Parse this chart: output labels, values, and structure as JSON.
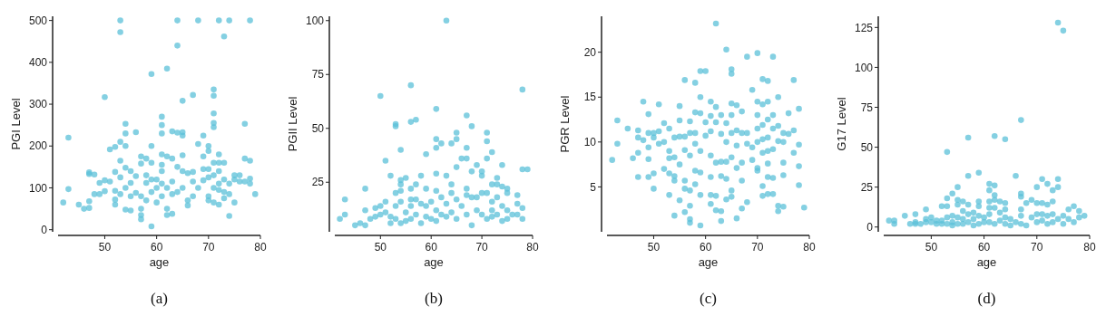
{
  "chart_data": [
    {
      "type": "scatter",
      "title": "(a)",
      "xlabel": "age",
      "ylabel": "PGI Level",
      "xlim": [
        41,
        80
      ],
      "xticks": [
        50,
        60,
        70,
        80
      ],
      "ylim": [
        -5,
        510
      ],
      "yticks": [
        0,
        100,
        200,
        300,
        400,
        500
      ],
      "marker": "circle",
      "series": [
        {
          "color": "#5bc0d8",
          "x": [
            42,
            43,
            43,
            45,
            46,
            47,
            47,
            47,
            47,
            48,
            48,
            49,
            49,
            50,
            50,
            50,
            51,
            51,
            52,
            52,
            52,
            52,
            52,
            53,
            53,
            53,
            53,
            53,
            53,
            54,
            54,
            54,
            54,
            54,
            54,
            55,
            55,
            55,
            55,
            56,
            56,
            56,
            57,
            57,
            57,
            57,
            57,
            57,
            58,
            58,
            58,
            58,
            59,
            59,
            59,
            59,
            59,
            59,
            60,
            60,
            60,
            61,
            61,
            61,
            61,
            61,
            61,
            61,
            61,
            62,
            62,
            62,
            62,
            62,
            63,
            63,
            63,
            63,
            63,
            64,
            64,
            64,
            64,
            64,
            65,
            65,
            65,
            65,
            65,
            65,
            66,
            66,
            66,
            67,
            67,
            67,
            67,
            68,
            68,
            68,
            69,
            69,
            69,
            69,
            70,
            70,
            70,
            70,
            70,
            70,
            71,
            71,
            71,
            71,
            71,
            71,
            71,
            71,
            71,
            72,
            72,
            72,
            72,
            72,
            72,
            72,
            73,
            73,
            73,
            73,
            73,
            74,
            74,
            74,
            74,
            75,
            75,
            75,
            76,
            76,
            77,
            77,
            77,
            78,
            78,
            78,
            78,
            79
          ],
          "values": [
            65,
            97,
            220,
            60,
            50,
            52,
            68,
            137,
            133,
            132,
            85,
            112,
            85,
            118,
            92,
            317,
            192,
            115,
            198,
            138,
            93,
            60,
            72,
            210,
            165,
            125,
            85,
            500,
            472,
            253,
            230,
            200,
            148,
            48,
            100,
            140,
            112,
            46,
            80,
            233,
            128,
            88,
            175,
            158,
            35,
            25,
            50,
            80,
            170,
            130,
            112,
            70,
            200,
            160,
            372,
            8,
            120,
            90,
            120,
            100,
            65,
            270,
            250,
            230,
            180,
            155,
            140,
            110,
            80,
            385,
            175,
            50,
            35,
            100,
            235,
            170,
            115,
            85,
            38,
            500,
            440,
            232,
            150,
            90,
            308,
            233,
            225,
            178,
            140,
            100,
            135,
            70,
            58,
            322,
            138,
            115,
            80,
            500,
            205,
            100,
            225,
            175,
            145,
            118,
            200,
            188,
            145,
            125,
            80,
            70,
            335,
            320,
            278,
            255,
            245,
            160,
            130,
            100,
            65,
            500,
            180,
            160,
            140,
            110,
            95,
            60,
            462,
            160,
            120,
            90,
            75,
            500,
            110,
            85,
            33,
            130,
            120,
            65,
            130,
            115,
            253,
            170,
            115,
            500,
            165,
            122,
            110,
            85
          ]
        }
      ]
    },
    {
      "type": "scatter",
      "title": "(b)",
      "xlabel": "age",
      "ylabel": "PGII Level",
      "xlim": [
        41,
        80
      ],
      "xticks": [
        50,
        60,
        70,
        80
      ],
      "ylim": [
        2,
        102
      ],
      "yticks": [
        25,
        50,
        75,
        100
      ],
      "marker": "circle",
      "series": [
        {
          "color": "#5bc0d8",
          "x": [
            42,
            43,
            43,
            45,
            46,
            47,
            47,
            47,
            48,
            49,
            49,
            50,
            50,
            50,
            51,
            51,
            51,
            52,
            52,
            52,
            53,
            53,
            53,
            53,
            53,
            54,
            54,
            54,
            54,
            54,
            54,
            55,
            55,
            55,
            56,
            56,
            56,
            56,
            56,
            56,
            57,
            57,
            57,
            57,
            58,
            58,
            58,
            59,
            59,
            59,
            59,
            60,
            60,
            61,
            61,
            61,
            61,
            61,
            61,
            61,
            62,
            62,
            62,
            63,
            63,
            63,
            63,
            64,
            64,
            64,
            64,
            65,
            65,
            65,
            65,
            65,
            66,
            66,
            67,
            67,
            67,
            67,
            67,
            67,
            68,
            68,
            68,
            68,
            69,
            69,
            69,
            70,
            70,
            70,
            70,
            71,
            71,
            71,
            71,
            71,
            72,
            72,
            72,
            72,
            72,
            73,
            73,
            73,
            73,
            74,
            74,
            74,
            74,
            75,
            75,
            75,
            75,
            76,
            77,
            77,
            77,
            78,
            78,
            78,
            78,
            79
          ],
          "values": [
            8,
            17,
            10,
            5,
            6,
            22,
            12,
            5,
            8,
            13,
            9,
            65,
            14,
            10,
            35,
            16,
            11,
            28,
            9,
            6,
            52,
            51,
            20,
            14,
            8,
            40,
            26,
            24,
            21,
            16,
            6,
            27,
            11,
            7,
            70,
            53,
            22,
            17,
            14,
            8,
            54,
            24,
            17,
            10,
            28,
            15,
            6,
            38,
            22,
            14,
            9,
            16,
            8,
            59,
            45,
            41,
            29,
            21,
            12,
            7,
            43,
            18,
            10,
            100,
            28,
            15,
            9,
            43,
            24,
            20,
            11,
            48,
            45,
            32,
            17,
            8,
            36,
            14,
            56,
            41,
            36,
            22,
            19,
            10,
            51,
            30,
            18,
            5,
            33,
            18,
            12,
            30,
            28,
            20,
            10,
            48,
            44,
            36,
            20,
            8,
            39,
            24,
            16,
            12,
            9,
            27,
            24,
            18,
            10,
            33,
            23,
            14,
            7,
            22,
            20,
            12,
            8,
            10,
            19,
            15,
            10,
            68,
            31,
            13,
            8,
            31
          ]
        }
      ]
    },
    {
      "type": "scatter",
      "title": "(c)",
      "xlabel": "age",
      "ylabel": "PGR Level",
      "xlim": [
        41,
        80
      ],
      "xticks": [
        50,
        60,
        70,
        80
      ],
      "ylim": [
        0,
        24
      ],
      "yticks": [
        5,
        10,
        15,
        20
      ],
      "marker": "circle",
      "series": [
        {
          "color": "#5bc0d8",
          "x": [
            42,
            43,
            43,
            45,
            46,
            47,
            47,
            47,
            47,
            48,
            48,
            49,
            49,
            49,
            49,
            49,
            50,
            50,
            50,
            50,
            51,
            51,
            51,
            52,
            52,
            52,
            53,
            53,
            53,
            53,
            53,
            54,
            54,
            54,
            54,
            54,
            55,
            55,
            55,
            55,
            55,
            56,
            56,
            56,
            56,
            56,
            56,
            57,
            57,
            57,
            57,
            57,
            57,
            57,
            58,
            58,
            58,
            58,
            58,
            58,
            59,
            59,
            59,
            59,
            59,
            59,
            59,
            60,
            60,
            60,
            61,
            61,
            61,
            61,
            61,
            61,
            61,
            62,
            62,
            62,
            62,
            62,
            62,
            63,
            63,
            63,
            63,
            63,
            63,
            64,
            64,
            64,
            64,
            64,
            64,
            65,
            65,
            65,
            65,
            65,
            65,
            65,
            65,
            66,
            66,
            66,
            66,
            66,
            67,
            67,
            67,
            67,
            67,
            68,
            68,
            68,
            68,
            69,
            69,
            69,
            70,
            70,
            70,
            70,
            70,
            70,
            70,
            71,
            71,
            71,
            71,
            71,
            71,
            71,
            72,
            72,
            72,
            72,
            72,
            72,
            72,
            72,
            73,
            73,
            73,
            73,
            73,
            73,
            74,
            74,
            74,
            74,
            74,
            75,
            75,
            75,
            75,
            75,
            76,
            76,
            77,
            77,
            77,
            78,
            78,
            78,
            78,
            79
          ],
          "values": [
            8.0,
            12.4,
            9.8,
            11.5,
            8.2,
            11.3,
            10.5,
            8.8,
            6.1,
            14.5,
            10.2,
            13.1,
            11.0,
            9.4,
            8.1,
            6.1,
            11.0,
            10.5,
            6.5,
            4.8,
            14.2,
            11.2,
            9.8,
            12.1,
            10.0,
            7.0,
            11.5,
            9.0,
            8.2,
            6.5,
            4.1,
            10.5,
            8.3,
            6.2,
            5.7,
            1.8,
            14.0,
            12.4,
            10.6,
            7.5,
            3.5,
            16.9,
            10.6,
            9.1,
            5.7,
            4.8,
            2.2,
            12.3,
            11.0,
            8.5,
            4.6,
            2.9,
            1.4,
            1.0,
            16.6,
            13.3,
            11.0,
            9.8,
            6.8,
            5.3,
            17.9,
            15.0,
            13.2,
            9.0,
            6.6,
            4.1,
            0.7,
            17.9,
            12.2,
            10.7,
            14.5,
            12.9,
            11.2,
            8.5,
            6.1,
            4.1,
            3.1,
            23.2,
            13.9,
            12.2,
            7.7,
            4.0,
            2.4,
            13.0,
            10.9,
            7.8,
            6.2,
            2.3,
            1.2,
            20.3,
            12.1,
            10.0,
            7.8,
            5.9,
            3.6,
            18.1,
            17.6,
            14.3,
            13.0,
            11.0,
            8.3,
            4.6,
            3.9,
            14.1,
            11.3,
            9.6,
            7.1,
            1.5,
            13.4,
            11.0,
            7.7,
            5.7,
            2.6,
            19.5,
            11.0,
            9.8,
            3.3,
            15.8,
            9.4,
            8.0,
            19.9,
            14.5,
            13.0,
            11.5,
            10.0,
            7.1,
            6.8,
            17.0,
            14.2,
            11.9,
            10.3,
            8.8,
            5.1,
            4.0,
            16.8,
            14.5,
            12.5,
            10.5,
            9.0,
            7.6,
            6.1,
            4.2,
            19.5,
            13.0,
            11.5,
            9.2,
            6.0,
            4.2,
            15.0,
            11.8,
            10.1,
            2.9,
            2.3,
            11.0,
            10.0,
            7.7,
            6.3,
            2.8,
            13.2,
            10.9,
            16.9,
            11.3,
            8.8,
            13.7,
            9.7,
            7.3,
            5.2,
            2.7
          ]
        }
      ]
    },
    {
      "type": "scatter",
      "title": "(d)",
      "xlabel": "age",
      "ylabel": "G17 Level",
      "xlim": [
        41,
        80
      ],
      "xticks": [
        50,
        60,
        70,
        80
      ],
      "ylim": [
        -3,
        132
      ],
      "yticks": [
        0,
        25,
        50,
        75,
        100,
        125
      ],
      "marker": "circle",
      "series": [
        {
          "color": "#5bc0d8",
          "x": [
            42,
            43,
            43,
            45,
            46,
            47,
            47,
            47,
            48,
            49,
            49,
            49,
            50,
            50,
            51,
            51,
            52,
            52,
            52,
            53,
            53,
            53,
            53,
            53,
            54,
            54,
            54,
            54,
            55,
            55,
            55,
            55,
            55,
            56,
            56,
            56,
            56,
            57,
            57,
            57,
            57,
            57,
            58,
            58,
            58,
            59,
            59,
            59,
            59,
            59,
            60,
            60,
            61,
            61,
            61,
            61,
            61,
            61,
            62,
            62,
            62,
            62,
            62,
            62,
            63,
            63,
            63,
            64,
            64,
            64,
            64,
            64,
            65,
            65,
            66,
            66,
            67,
            67,
            67,
            67,
            67,
            67,
            68,
            68,
            69,
            69,
            70,
            70,
            70,
            70,
            71,
            71,
            71,
            71,
            72,
            72,
            72,
            72,
            73,
            73,
            73,
            73,
            74,
            74,
            74,
            74,
            75,
            75,
            75,
            76,
            76,
            77,
            77,
            78,
            78,
            79
          ],
          "values": [
            4,
            4,
            2,
            7,
            2,
            8,
            3,
            2,
            2,
            11,
            5,
            3,
            6,
            3,
            4,
            2,
            13,
            4,
            2,
            47,
            18,
            13,
            6,
            2,
            21,
            7,
            3,
            1,
            25,
            17,
            14,
            6,
            2,
            16,
            10,
            5,
            2,
            56,
            32,
            14,
            8,
            3,
            9,
            5,
            1,
            34,
            16,
            13,
            7,
            2,
            6,
            3,
            27,
            23,
            16,
            12,
            8,
            3,
            57,
            26,
            20,
            17,
            12,
            2,
            16,
            9,
            4,
            55,
            15,
            11,
            6,
            2,
            5,
            1,
            32,
            3,
            67,
            21,
            19,
            11,
            7,
            2,
            15,
            1,
            17,
            6,
            25,
            15,
            8,
            3,
            30,
            15,
            8,
            4,
            27,
            14,
            7,
            2,
            23,
            16,
            8,
            3,
            128,
            30,
            25,
            5,
            123,
            7,
            2,
            11,
            5,
            13,
            3,
            10,
            6,
            7
          ]
        }
      ]
    }
  ]
}
